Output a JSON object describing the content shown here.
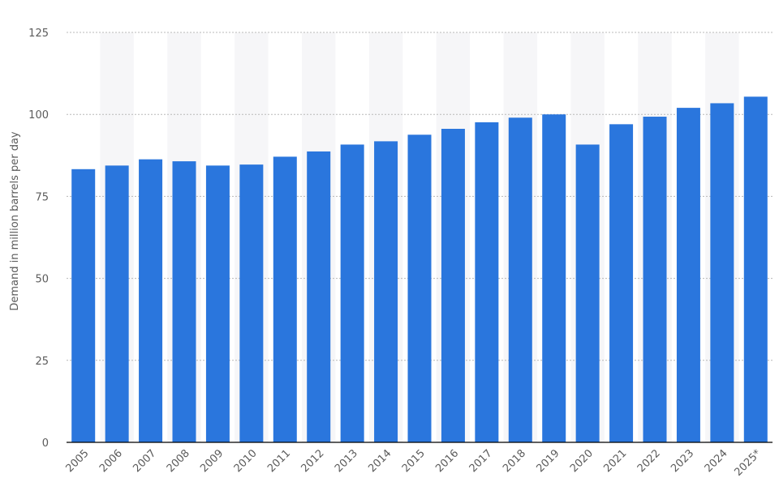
{
  "chart_data": {
    "type": "bar",
    "title": "",
    "xlabel": "",
    "ylabel": "Demand in million barrels per day",
    "ylim": [
      0,
      125
    ],
    "yticks": [
      0,
      25,
      50,
      75,
      100,
      125
    ],
    "grid": true,
    "categories": [
      "2005",
      "2006",
      "2007",
      "2008",
      "2009",
      "2010",
      "2011",
      "2012",
      "2013",
      "2014",
      "2015",
      "2016",
      "2017",
      "2018",
      "2019",
      "2020",
      "2021",
      "2022",
      "2023",
      "2024",
      "2025*"
    ],
    "values": [
      83.3,
      84.4,
      86.3,
      85.7,
      84.4,
      84.7,
      87.1,
      88.7,
      90.8,
      91.8,
      93.8,
      95.6,
      97.6,
      99.0,
      100.0,
      90.8,
      97.0,
      99.3,
      102.0,
      103.4,
      105.4
    ],
    "colors": {
      "bar": "#2a76dd",
      "band": "#f6f6f8",
      "grid": "#b8b8b8",
      "axis": "#000000",
      "text": "#5b5b5b"
    }
  }
}
